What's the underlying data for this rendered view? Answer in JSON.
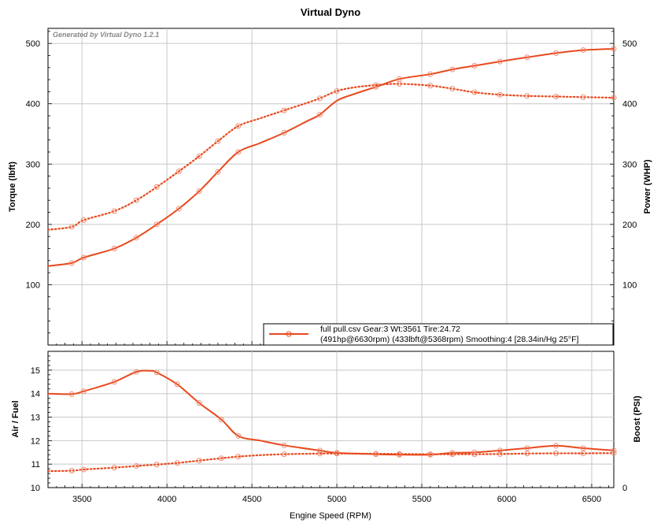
{
  "chart_data": [
    {
      "type": "line",
      "title": "Virtual Dyno",
      "generated_by": "Generated by Virtual Dyno 1.2.1",
      "ylabel": "Torque (lbft)",
      "y2label": "Power (WHP)",
      "xlim": [
        3300,
        6630
      ],
      "ylim": [
        0,
        525
      ],
      "y2lim": [
        0,
        525
      ],
      "y_ticks": [
        "100",
        "200",
        "300",
        "400",
        "500"
      ],
      "y2_ticks": [
        "100",
        "200",
        "300",
        "400",
        "500"
      ],
      "grid": true,
      "legend": {
        "line1": "full pull.csv Gear:3 Wt:3561 Tire:24.72",
        "line2": "(491hp@6630rpm) (433lbft@5368rpm) Smoothing:4 [28.34in/Hg 25°F]",
        "placement": "bottom-right"
      },
      "series": [
        {
          "role": "power",
          "style": "solid",
          "color": "#e8491d",
          "x": [
            3300,
            3440,
            3510,
            3690,
            3820,
            3940,
            4070,
            4190,
            4300,
            4420,
            4550,
            4690,
            4830,
            4900,
            5000,
            5100,
            5230,
            5368,
            5550,
            5680,
            5810,
            5960,
            6120,
            6290,
            6450,
            6630
          ],
          "y": [
            131,
            136,
            145,
            160,
            178,
            200,
            226,
            255,
            287,
            320,
            335,
            352,
            372,
            382,
            405,
            416,
            428,
            441,
            449,
            457,
            463,
            470,
            477,
            484,
            489,
            491
          ],
          "markers_x": [
            3440,
            3510,
            3690,
            3820,
            3940,
            4070,
            4190,
            4300,
            4420,
            4690,
            4900,
            5230,
            5368,
            5550,
            5680,
            5810,
            5960,
            6120,
            6290,
            6450,
            6630
          ]
        },
        {
          "role": "torque",
          "style": "dotted",
          "color": "#e8491d",
          "x": [
            3300,
            3440,
            3510,
            3690,
            3820,
            3940,
            4070,
            4190,
            4300,
            4420,
            4550,
            4690,
            4830,
            4900,
            5000,
            5100,
            5230,
            5368,
            5550,
            5680,
            5810,
            5960,
            6120,
            6290,
            6450,
            6630
          ],
          "y": [
            191,
            196,
            207,
            222,
            240,
            262,
            288,
            313,
            338,
            363,
            376,
            389,
            402,
            409,
            421,
            427,
            431,
            433,
            430,
            425,
            419,
            415,
            413,
            412,
            411,
            410
          ],
          "markers_x": [
            3440,
            3510,
            3690,
            3820,
            3940,
            4070,
            4190,
            4300,
            4420,
            4690,
            4900,
            5000,
            5230,
            5368,
            5550,
            5680,
            5810,
            5960,
            6120,
            6290,
            6450,
            6630
          ]
        }
      ]
    },
    {
      "type": "line",
      "xlabel": "Engine Speed (RPM)",
      "ylabel": "Air / Fuel",
      "y2label": "Boost (PSI)",
      "xlim": [
        3300,
        6630
      ],
      "ylim": [
        10,
        15.8
      ],
      "x_ticks": [
        "3500",
        "4000",
        "4500",
        "5000",
        "5500",
        "6000",
        "6500"
      ],
      "y_ticks": [
        "10",
        "11",
        "12",
        "13",
        "14",
        "15"
      ],
      "y2_ticks": [
        "0"
      ],
      "grid": true,
      "series": [
        {
          "role": "air-fuel",
          "style": "solid",
          "color": "#e8491d",
          "x": [
            3300,
            3440,
            3510,
            3690,
            3820,
            3900,
            3940,
            4060,
            4190,
            4320,
            4420,
            4550,
            4690,
            4900,
            5000,
            5230,
            5368,
            5550,
            5680,
            5810,
            5960,
            6120,
            6290,
            6450,
            6630
          ],
          "y": [
            14.0,
            13.98,
            14.1,
            14.5,
            14.93,
            14.97,
            14.9,
            14.4,
            13.6,
            12.9,
            12.2,
            12.0,
            11.8,
            11.58,
            11.48,
            11.42,
            11.4,
            11.4,
            11.48,
            11.5,
            11.58,
            11.68,
            11.78,
            11.68,
            11.58
          ],
          "markers_x": [
            3440,
            3510,
            3690,
            3820,
            3940,
            4060,
            4190,
            4320,
            4420,
            4690,
            4900,
            5000,
            5230,
            5368,
            5550,
            5680,
            5810,
            5960,
            6120,
            6290,
            6450,
            6630
          ]
        },
        {
          "role": "air-fuel-trace-2",
          "style": "dotted",
          "color": "#e8491d",
          "x": [
            3300,
            3440,
            3510,
            3690,
            3820,
            3940,
            4060,
            4190,
            4320,
            4420,
            4550,
            4690,
            4900,
            5000,
            5230,
            5368,
            5550,
            5680,
            5810,
            5960,
            6120,
            6290,
            6450,
            6630
          ],
          "y": [
            10.7,
            10.72,
            10.77,
            10.85,
            10.92,
            10.98,
            11.05,
            11.15,
            11.25,
            11.32,
            11.38,
            11.42,
            11.45,
            11.45,
            11.44,
            11.43,
            11.42,
            11.42,
            11.42,
            11.43,
            11.45,
            11.46,
            11.46,
            11.47
          ],
          "markers_x": [
            3440,
            3510,
            3690,
            3820,
            3940,
            4060,
            4190,
            4320,
            4420,
            4690,
            4900,
            5000,
            5230,
            5368,
            5550,
            5680,
            5810,
            5960,
            6120,
            6290,
            6450,
            6630
          ]
        }
      ]
    }
  ]
}
